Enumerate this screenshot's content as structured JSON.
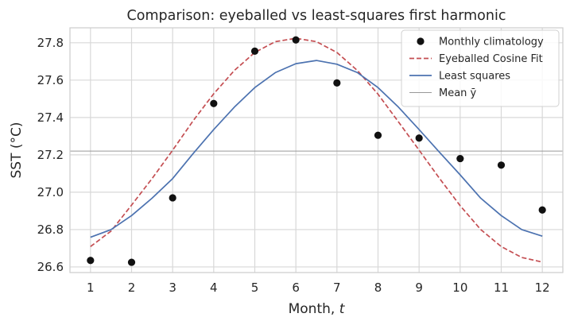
{
  "chart_data": {
    "type": "line",
    "title": "Comparison: eyeballed vs least-squares first harmonic",
    "xlabel": "Month, t",
    "ylabel": "SST (°C)",
    "xlim": [
      0.5,
      12.5
    ],
    "ylim": [
      26.57,
      27.88
    ],
    "xticks": [
      1,
      2,
      3,
      4,
      5,
      6,
      7,
      8,
      9,
      10,
      11,
      12
    ],
    "xtick_labels": [
      "1",
      "2",
      "3",
      "4",
      "5",
      "6",
      "7",
      "8",
      "9",
      "10",
      "11",
      "12"
    ],
    "yticks": [
      26.6,
      26.8,
      27.0,
      27.2,
      27.4,
      27.6,
      27.8
    ],
    "ytick_labels": [
      "26.6",
      "26.8",
      "27.0",
      "27.2",
      "27.4",
      "27.6",
      "27.8"
    ],
    "grid": true,
    "legend_position": "top-right",
    "series": [
      {
        "name": "Monthly climatology",
        "kind": "scatter",
        "color": "#111111",
        "x": [
          1,
          2,
          3,
          4,
          5,
          6,
          7,
          8,
          9,
          10,
          11,
          12
        ],
        "y": [
          26.635,
          26.625,
          26.97,
          27.475,
          27.755,
          27.815,
          27.585,
          27.305,
          27.29,
          27.18,
          27.145,
          26.905
        ]
      },
      {
        "name": "Eyeballed Cosine Fit",
        "kind": "line",
        "style": "dashed",
        "color": "#c44e52",
        "x": [
          1,
          1.5,
          2,
          2.5,
          3,
          3.5,
          4,
          4.5,
          5,
          5.5,
          6,
          6.5,
          7,
          7.5,
          8,
          8.5,
          9,
          9.5,
          10,
          10.5,
          11,
          11.5,
          12
        ],
        "y": [
          26.709,
          26.792,
          26.931,
          27.073,
          27.225,
          27.383,
          27.527,
          27.651,
          27.748,
          27.806,
          27.824,
          27.806,
          27.748,
          27.651,
          27.525,
          27.376,
          27.225,
          27.073,
          26.928,
          26.8,
          26.709,
          26.651,
          26.626
        ]
      },
      {
        "name": "Least squares",
        "kind": "line",
        "style": "solid",
        "color": "#4c72b0",
        "x": [
          1,
          1.5,
          2,
          2.5,
          3,
          3.5,
          4,
          4.5,
          5,
          5.5,
          6,
          6.5,
          7,
          7.5,
          8,
          8.5,
          9,
          9.5,
          10,
          10.5,
          11,
          11.5,
          12
        ],
        "y": [
          26.759,
          26.8,
          26.875,
          26.968,
          27.073,
          27.207,
          27.335,
          27.455,
          27.56,
          27.64,
          27.688,
          27.705,
          27.685,
          27.64,
          27.56,
          27.455,
          27.335,
          27.213,
          27.093,
          26.968,
          26.875,
          26.8,
          26.765
        ]
      },
      {
        "name": "Mean ȳ",
        "kind": "hline",
        "color": "#999999",
        "y": 27.22
      }
    ]
  }
}
